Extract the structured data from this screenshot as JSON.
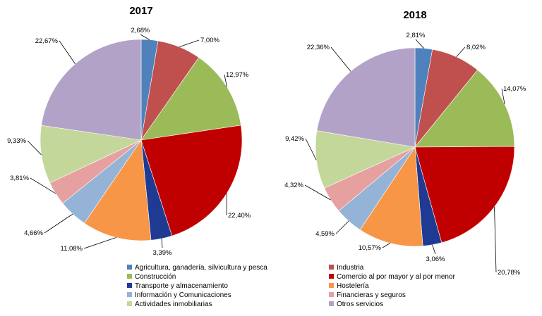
{
  "chart_data": {
    "type": "pie",
    "categories": [
      "Agricultura, ganadería, silvicultura y pesca",
      "Industria",
      "Construcción",
      "Comercio al por mayor y al por menor",
      "Transporte y almacenamiento",
      "Hostelería",
      "Información y Comunicaciones",
      "Financieras y seguros",
      "Actividades inmobiliarias",
      "Otros servicios"
    ],
    "colors": [
      "#4f81bd",
      "#c0504d",
      "#9bbb59",
      "#c00000",
      "#1f3a93",
      "#f79646",
      "#95b3d7",
      "#e6a0a0",
      "#c4d79b",
      "#b3a2c7"
    ],
    "series": [
      {
        "name": "2017",
        "values": [
          2.68,
          7.0,
          12.97,
          22.4,
          3.39,
          11.08,
          4.66,
          3.81,
          9.33,
          22.67
        ],
        "labels": [
          "2,68%",
          "7,00%",
          "12,97%",
          "22,40%",
          "3,39%",
          "11,08%",
          "4,66%",
          "3,81%",
          "9,33%",
          "22,67%"
        ]
      },
      {
        "name": "2018",
        "values": [
          2.81,
          8.02,
          14.07,
          20.78,
          3.06,
          10.57,
          4.59,
          4.32,
          9.42,
          22.36
        ],
        "labels": [
          "2,81%",
          "8,02%",
          "14,07%",
          "20,78%",
          "3,06%",
          "10,57%",
          "4,59%",
          "4,32%",
          "9,42%",
          "22,36%"
        ]
      }
    ],
    "legend": {
      "placement": "bottom",
      "columns": 2,
      "order": [
        0,
        1,
        2,
        3,
        4,
        5,
        6,
        7,
        8,
        9
      ]
    }
  }
}
